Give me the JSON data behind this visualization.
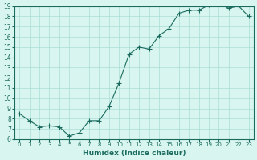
{
  "x": [
    0,
    1,
    2,
    3,
    4,
    5,
    6,
    7,
    8,
    9,
    10,
    11,
    12,
    13,
    14,
    15,
    16,
    17,
    18,
    19,
    20,
    21,
    22,
    23
  ],
  "y": [
    8.5,
    7.8,
    7.2,
    7.3,
    7.2,
    6.3,
    6.6,
    7.8,
    7.8,
    9.2,
    11.5,
    14.3,
    15.0,
    14.8,
    16.1,
    16.8,
    18.3,
    18.6,
    18.6,
    19.1,
    19.2,
    18.8,
    19.0,
    18.0
  ],
  "line_color": "#1a6b5e",
  "marker": "+",
  "bg_color": "#d8f5f0",
  "grid_color": "#aaddd6",
  "text_color": "#1a6b5e",
  "xlabel": "Humidex (Indice chaleur)",
  "ylim": [
    6,
    19
  ],
  "xlim": [
    -0.5,
    23.5
  ],
  "yticks": [
    6,
    7,
    8,
    9,
    10,
    11,
    12,
    13,
    14,
    15,
    16,
    17,
    18,
    19
  ],
  "xticks": [
    0,
    1,
    2,
    3,
    4,
    5,
    6,
    7,
    8,
    9,
    10,
    11,
    12,
    13,
    14,
    15,
    16,
    17,
    18,
    19,
    20,
    21,
    22,
    23
  ],
  "xtick_labels": [
    "0",
    "1",
    "2",
    "3",
    "4",
    "5",
    "6",
    "7",
    "8",
    "9",
    "10",
    "11",
    "12",
    "13",
    "14",
    "15",
    "16",
    "17",
    "18",
    "19",
    "20",
    "21",
    "22",
    "23"
  ]
}
